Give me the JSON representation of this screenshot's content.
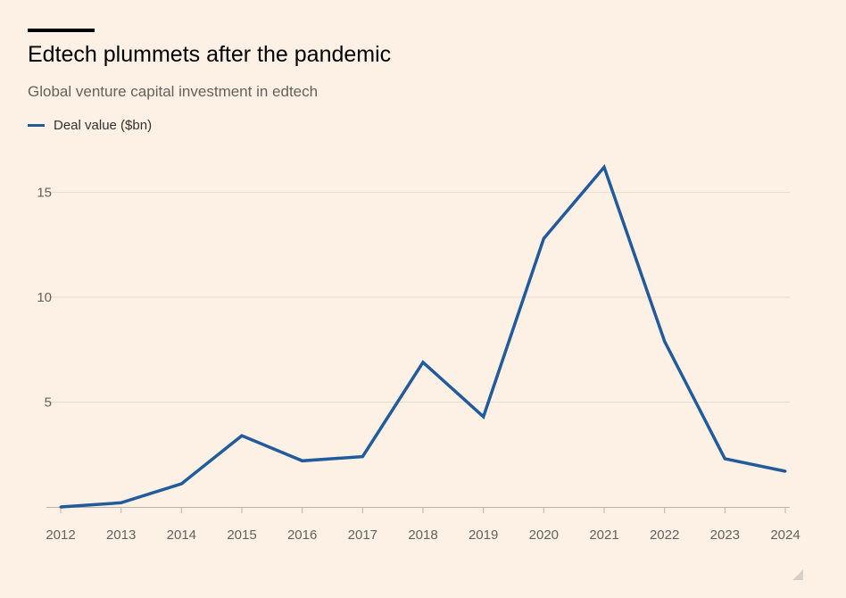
{
  "header": {
    "title": "Edtech plummets after the pandemic",
    "subtitle": "Global venture capital investment in edtech"
  },
  "colors": {
    "background": "#fdf1e5",
    "series": "#225b9b",
    "gridline": "#e9ddd1",
    "baseline": "#bdb3aa"
  },
  "chart_data": {
    "type": "line",
    "title": "Edtech plummets after the pandemic",
    "subtitle": "Global venture capital investment in edtech",
    "x": [
      "2012",
      "2013",
      "2014",
      "2015",
      "2016",
      "2017",
      "2018",
      "2019",
      "2020",
      "2021",
      "2022",
      "2023",
      "2024"
    ],
    "series": [
      {
        "name": "Deal value ($bn)",
        "values": [
          0.0,
          0.2,
          1.1,
          3.4,
          2.2,
          2.4,
          6.9,
          4.3,
          12.8,
          16.2,
          7.9,
          2.3,
          1.7
        ]
      }
    ],
    "xlabel": "",
    "ylabel": "",
    "yticks": [
      5,
      10,
      15
    ],
    "ylim": [
      0,
      18.5
    ],
    "grid": true,
    "legend": "top-left"
  }
}
